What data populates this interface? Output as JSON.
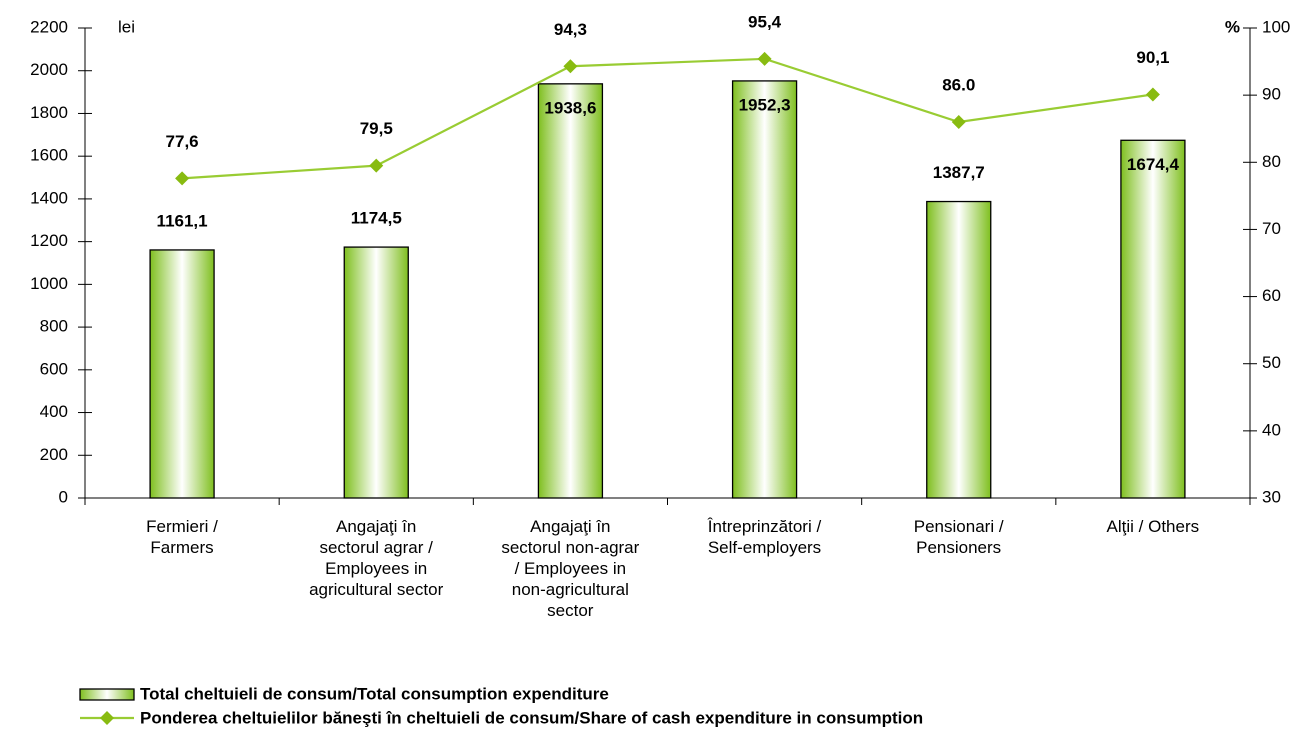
{
  "chart_data": {
    "type": "bar_line",
    "categories": [
      "Fermieri /\nFarmers",
      "Angajaţi în\nsectorul agrar /\nEmployees in\nagricultural sector",
      "Angajaţi în\nsectorul non-agrar\n/ Employees in\nnon-agricultural\nsector",
      "Întreprinzători /\nSelf-employers",
      "Pensionari /\nPensioners",
      "Alţii / Others"
    ],
    "ylabel": "lei",
    "y2label": "%",
    "ylim": [
      0,
      2200
    ],
    "yticks": [
      0,
      200,
      400,
      600,
      800,
      1000,
      1200,
      1400,
      1600,
      1800,
      2000,
      2200
    ],
    "y2lim": [
      30,
      100
    ],
    "y2ticks": [
      30,
      40,
      50,
      60,
      70,
      80,
      90,
      100
    ],
    "series": [
      {
        "name": "Total cheltuieli de consum/Total consumption expenditure",
        "type": "bar",
        "color": "#8cc63f",
        "values": [
          1161.1,
          1174.5,
          1938.6,
          1952.3,
          1387.7,
          1674.4
        ],
        "value_labels": [
          "1161,1",
          "1174,5",
          "1938,6",
          "1952,3",
          "1387,7",
          "1674,4"
        ]
      },
      {
        "name": "Ponderea cheltuielilor băneşti în cheltuieli de consum/Share of cash expenditure in consumption",
        "type": "line",
        "axis": "y2",
        "color": "#99cc33",
        "values": [
          77.6,
          79.5,
          94.3,
          95.4,
          86.0,
          90.1
        ],
        "value_labels": [
          "77,6",
          "79,5",
          "94,3",
          "95,4",
          "86.0",
          "90,1"
        ]
      }
    ]
  }
}
